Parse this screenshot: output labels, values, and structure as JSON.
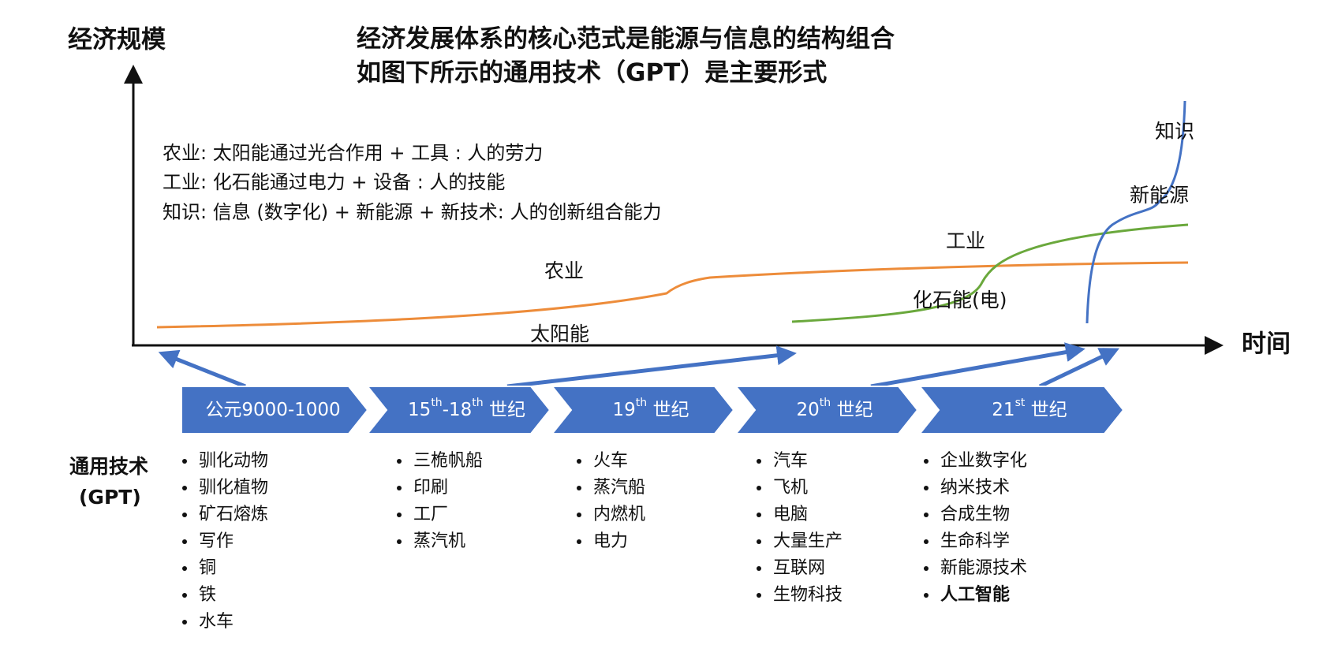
{
  "y_axis_label": "经济规模",
  "x_axis_label": "时间",
  "title": [
    "经济发展体系的核心范式是能源与信息的结构组合",
    "如图下所示的通用技术（GPT）是主要形式"
  ],
  "notes": [
    "农业: 太阳能通过光合作用 + 工具 : 人的劳力",
    "工业: 化石能通过电力 + 设备 : 人的技能",
    "知识: 信息 (数字化) + 新能源 + 新技术: 人的创新组合能力"
  ],
  "curve_labels": {
    "agriculture": "农业",
    "solar": "太阳能",
    "industry": "工业",
    "fossil": "化石能(电)",
    "knowledge": "知识",
    "new_energy": "新能源"
  },
  "gpt_label": [
    "通用技术",
    "(GPT)"
  ],
  "periods": [
    {
      "label": [
        {
          "text": "公元9000-1000"
        }
      ],
      "items": [
        "驯化动物",
        "驯化植物",
        "矿石熔炼",
        "写作",
        "铜",
        "铁",
        "水车"
      ]
    },
    {
      "label": [
        {
          "text": "15"
        },
        {
          "sup": "th"
        },
        {
          "text": "-18"
        },
        {
          "sup": "th"
        },
        {
          "text": " 世纪"
        }
      ],
      "items": [
        "三桅帆船",
        "印刷",
        "工厂",
        "蒸汽机"
      ]
    },
    {
      "label": [
        {
          "text": "19"
        },
        {
          "sup": "th"
        },
        {
          "text": " 世纪"
        }
      ],
      "items": [
        "火车",
        "蒸汽船",
        "内燃机",
        "电力"
      ]
    },
    {
      "label": [
        {
          "text": "20"
        },
        {
          "sup": "th"
        },
        {
          "text": " 世纪"
        }
      ],
      "items": [
        "汽车",
        "飞机",
        "电脑",
        "大量生产",
        "互联网",
        "生物科技"
      ]
    },
    {
      "label": [
        {
          "text": "21"
        },
        {
          "sup": "st"
        },
        {
          "text": " 世纪"
        }
      ],
      "items": [
        "企业数字化",
        "纳米技术",
        "合成生物",
        "生命科学",
        "新能源技术",
        "人工智能"
      ]
    }
  ]
}
